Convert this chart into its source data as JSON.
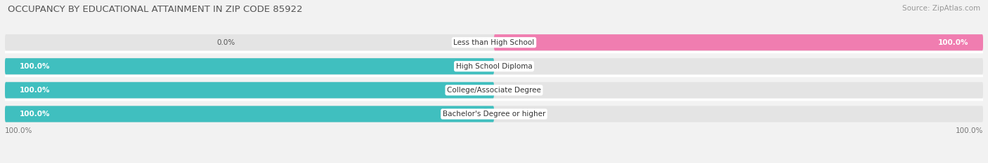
{
  "title": "OCCUPANCY BY EDUCATIONAL ATTAINMENT IN ZIP CODE 85922",
  "source": "Source: ZipAtlas.com",
  "categories": [
    "Less than High School",
    "High School Diploma",
    "College/Associate Degree",
    "Bachelor's Degree or higher"
  ],
  "owner_pct": [
    0.0,
    100.0,
    100.0,
    100.0
  ],
  "renter_pct": [
    100.0,
    0.0,
    0.0,
    0.0
  ],
  "owner_color": "#40bfbf",
  "renter_color": "#f07db0",
  "bg_color": "#f2f2f2",
  "bar_bg_color": "#e4e4e4",
  "row_sep_color": "#ffffff",
  "title_fontsize": 9.5,
  "label_fontsize": 7.5,
  "pct_fontsize": 7.5,
  "source_fontsize": 7.5,
  "legend_fontsize": 8,
  "x_tick_labels": [
    "100.0%",
    "100.0%"
  ],
  "x_tick_positions": [
    -100,
    100
  ]
}
